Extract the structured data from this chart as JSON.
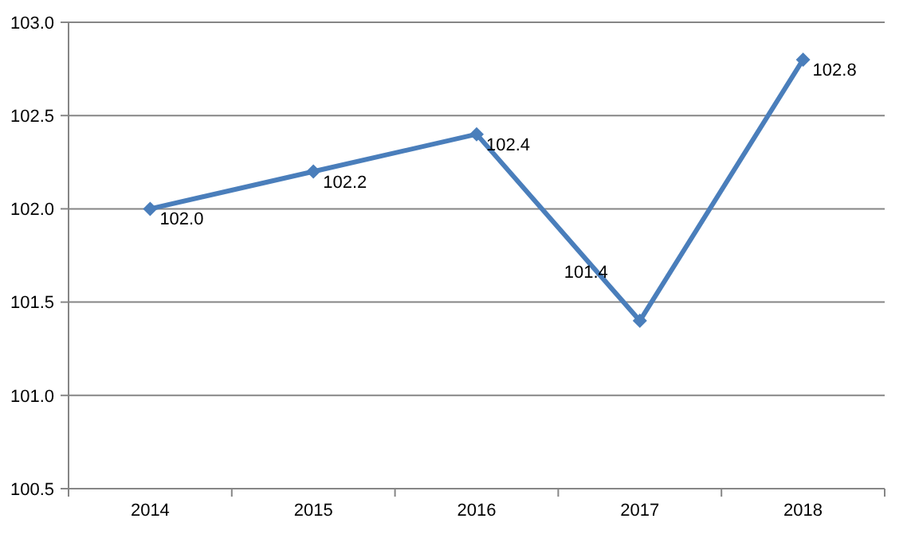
{
  "chart_data": {
    "type": "line",
    "categories": [
      "2014",
      "2015",
      "2016",
      "2017",
      "2018"
    ],
    "series": [
      {
        "color": "#4a7ebb",
        "values": [
          102.0,
          102.2,
          102.4,
          101.4,
          102.8
        ],
        "value_labels": [
          "102.0",
          "102.2",
          "102.4",
          "101.4",
          "102.8"
        ]
      }
    ],
    "ylim": [
      100.5,
      103.0
    ],
    "yticks": [
      {
        "value": 100.5,
        "label": "100.5"
      },
      {
        "value": 101,
        "label": "101.0"
      },
      {
        "value": 101.5,
        "label": "101.5"
      },
      {
        "value": 102,
        "label": "102.0"
      },
      {
        "value": 102.5,
        "label": "102.5"
      },
      {
        "value": 103,
        "label": "103.0"
      }
    ],
    "grid": "y",
    "marker": "diamond",
    "line_style": "solid"
  }
}
